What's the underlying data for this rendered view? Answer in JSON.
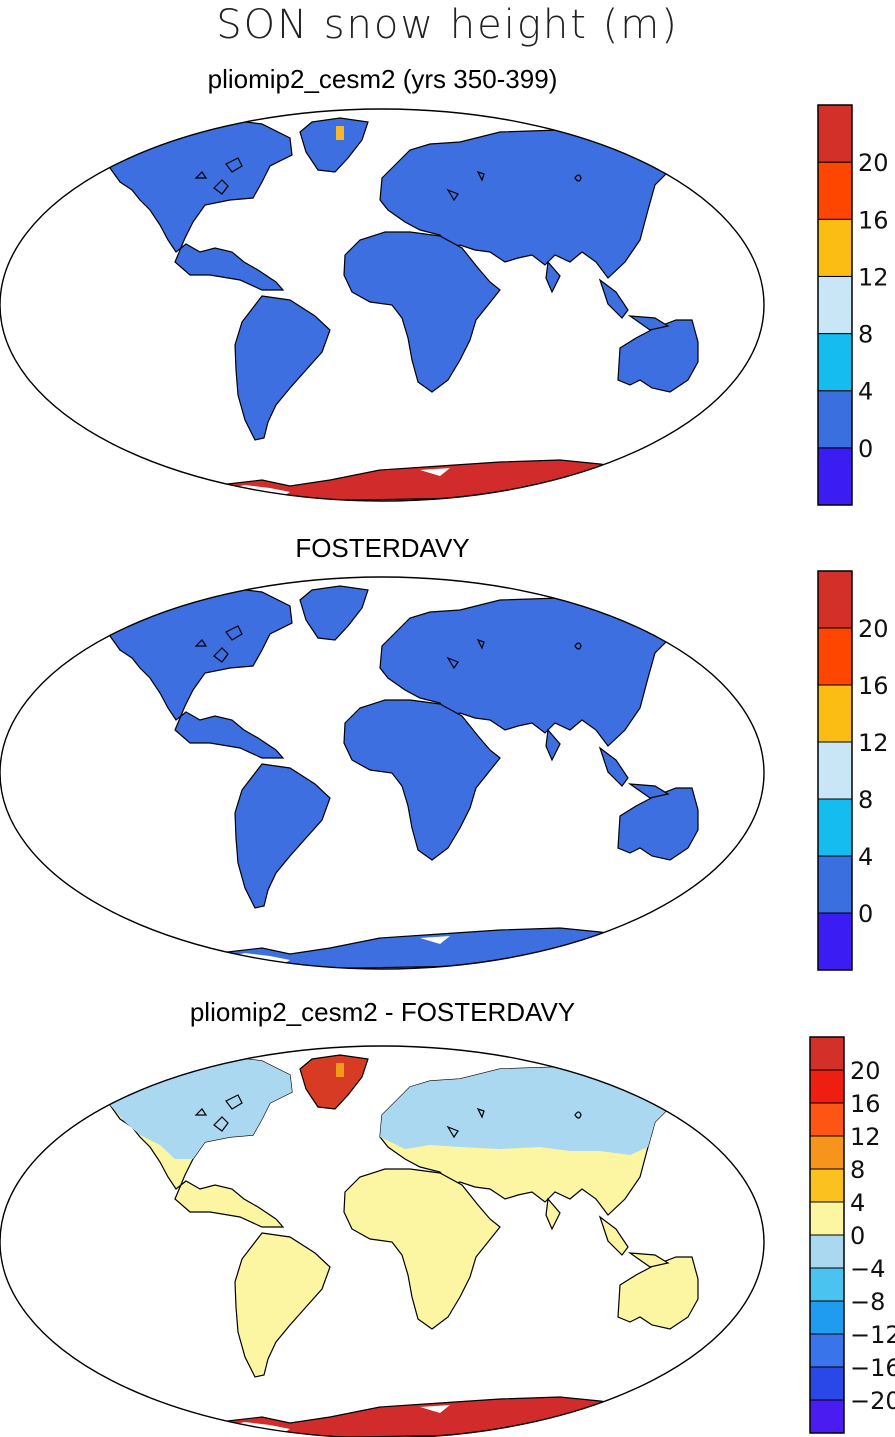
{
  "figure_title": "SON snow height (m)",
  "colors": {
    "ocean": "#ffffff",
    "land_outline": "#000000",
    "ice_red": "#d22b2b",
    "land_blue": "#3d6fe0",
    "diff_yellow": "#fcf5a2",
    "diff_lightblue": "#a9d8f0"
  },
  "panels": [
    {
      "title": "pliomip2_cesm2 (yrs 350-399)",
      "fills": {
        "continents": "land_blue",
        "greenland": "land_blue",
        "antarctica": "ice_red",
        "greenland_spot": "#f6b82a"
      },
      "colorbar": {
        "colors": [
          "#3b1cf2",
          "#3a6fe0",
          "#14bcf0",
          "#c9e6f7",
          "#fbbd14",
          "#ff4600",
          "#d3302a"
        ],
        "labels": [
          "0",
          "4",
          "8",
          "12",
          "16",
          "20"
        ]
      }
    },
    {
      "title": "FOSTERDAVY",
      "fills": {
        "continents": "land_blue",
        "greenland": "land_blue",
        "antarctica": "land_blue",
        "greenland_spot": "land_blue"
      },
      "colorbar": {
        "colors": [
          "#3b1cf2",
          "#3a6fe0",
          "#14bcf0",
          "#c9e6f7",
          "#fbbd14",
          "#ff4600",
          "#d3302a"
        ],
        "labels": [
          "0",
          "4",
          "8",
          "12",
          "16",
          "20"
        ]
      }
    },
    {
      "title": "pliomip2_cesm2 - FOSTERDAVY",
      "fills": {
        "continents": "diff_yellow",
        "north": "diff_lightblue",
        "greenland": "#d83b23",
        "antarctica": "ice_red",
        "greenland_spot": "#f39a18"
      },
      "colorbar": {
        "colors": [
          "#4a1cf2",
          "#2a47e8",
          "#3a74ea",
          "#1f9cf0",
          "#4bc3f0",
          "#a9d8f0",
          "#fcf5a2",
          "#fbc21f",
          "#f7941c",
          "#ff5514",
          "#ee1e10",
          "#d3302a"
        ],
        "labels": [
          "-20",
          "-16",
          "-12",
          "-8",
          "-4",
          "0",
          "4",
          "8",
          "12",
          "16",
          "20"
        ]
      }
    }
  ]
}
